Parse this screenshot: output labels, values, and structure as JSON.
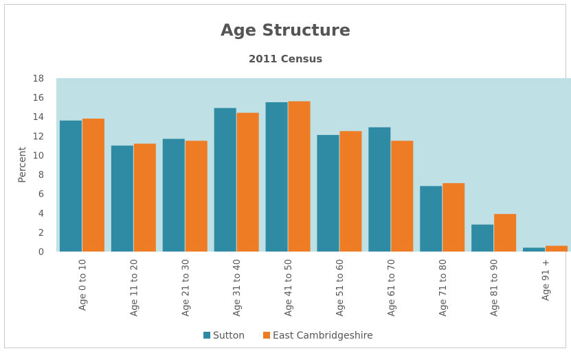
{
  "chart_data": {
    "type": "bar",
    "title": "Age Structure",
    "subtitle": "2011 Census",
    "xlabel": "",
    "ylabel": "Percent",
    "ylim": [
      0,
      18
    ],
    "yticks": [
      "0",
      "2",
      "4",
      "6",
      "8",
      "10",
      "12",
      "14",
      "16",
      "18"
    ],
    "grid": false,
    "legend_position": "bottom",
    "plot_background": "#bfe0e4",
    "categories": [
      "Age 0 to 10",
      "Age 11 to 20",
      "Age 21 to 30",
      "Age 31 to 40",
      "Age 41 to 50",
      "Age 51 to 60",
      "Age 61 to 70",
      "Age 71 to 80",
      "Age 81 to 90",
      "Age 91 +"
    ],
    "series": [
      {
        "name": "Sutton",
        "color": "#2f8aa3",
        "values": [
          13.6,
          11.0,
          11.7,
          14.9,
          15.5,
          12.1,
          12.9,
          6.8,
          2.8,
          0.4
        ]
      },
      {
        "name": "East Cambridgeshire",
        "color": "#ee7c24",
        "values": [
          13.8,
          11.2,
          11.5,
          14.4,
          15.6,
          12.5,
          11.5,
          7.1,
          3.9,
          0.6
        ]
      }
    ]
  }
}
